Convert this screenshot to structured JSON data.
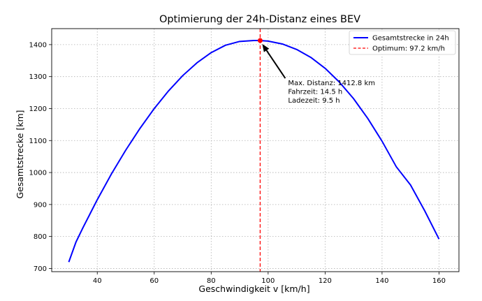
{
  "chart_data": {
    "type": "line",
    "title": "Optimierung der 24h-Distanz eines BEV",
    "xlabel": "Geschwindigkeit v [km/h]",
    "ylabel": "Gesamtstrecke [km]",
    "xlim": [
      24,
      167
    ],
    "ylim": [
      690,
      1450
    ],
    "xticks": [
      40,
      60,
      80,
      100,
      120,
      140,
      160
    ],
    "yticks": [
      700,
      800,
      900,
      1000,
      1100,
      1200,
      1300,
      1400
    ],
    "grid": true,
    "legend_position": "top-right",
    "series": [
      {
        "name": "Gesamtstrecke in 24h",
        "color": "#0000ff",
        "x": [
          30,
          32.5,
          35,
          40,
          45,
          50,
          55,
          60,
          65,
          70,
          75,
          80,
          85,
          90,
          95,
          97.2,
          100,
          105,
          110,
          115,
          120,
          125,
          130,
          135,
          140,
          145,
          150,
          155,
          160
        ],
        "y": [
          720,
          782,
          828,
          915,
          996,
          1070,
          1138,
          1200,
          1255,
          1303,
          1343,
          1375,
          1398,
          1410,
          1412.8,
          1412.8,
          1411,
          1402,
          1385,
          1360,
          1326,
          1283,
          1231,
          1169,
          1098,
          1018,
          961,
          880,
          792
        ]
      }
    ],
    "optimum": {
      "name": "Optimum: 97.2 km/h",
      "x": 97.2,
      "y": 1412.8,
      "color": "#ff0000"
    },
    "annotation": {
      "lines": [
        "Max. Distanz: 1412.8 km",
        "Fahrzeit: 14.5 h",
        "Ladezeit: 9.5 h"
      ],
      "text_x": 107,
      "text_y": 1273
    }
  }
}
